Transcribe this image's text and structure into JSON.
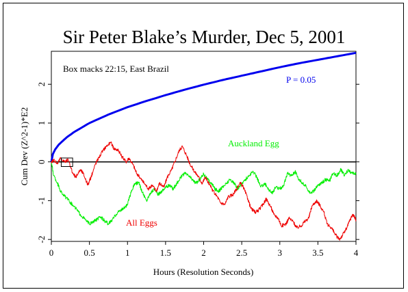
{
  "chart_data": {
    "type": "line",
    "title": "Sir Peter Blake’s Murder, Dec 5, 2001",
    "xlabel": "Hours (Resolution Seconds)",
    "ylabel": "Cum Dev (Z^2-1)*E2",
    "xlim": [
      0,
      4
    ],
    "ylim": [
      -2.05,
      2.85
    ],
    "x_ticks": [
      {
        "value": 0,
        "label": "0"
      },
      {
        "value": 0.5,
        "label": "0.5"
      },
      {
        "value": 1,
        "label": "1"
      },
      {
        "value": 1.5,
        "label": "1.5"
      },
      {
        "value": 2,
        "label": "2"
      },
      {
        "value": 2.5,
        "label": "2.5"
      },
      {
        "value": 3,
        "label": "3"
      },
      {
        "value": 3.5,
        "label": "3.5"
      },
      {
        "value": 4,
        "label": "4"
      }
    ],
    "y_ticks": [
      {
        "value": -2,
        "label": "-2"
      },
      {
        "value": -1,
        "label": "-1"
      },
      {
        "value": 0,
        "label": "0"
      },
      {
        "value": 1,
        "label": "1"
      },
      {
        "value": 2,
        "label": "2"
      }
    ],
    "annotations": {
      "box_note": "Box macks 22:15, East Brazil",
      "p_label": "P = 0.05",
      "auckland_label": "Auckland Egg",
      "alleggs_label": "All Eggs"
    },
    "box_marker": {
      "x": [
        0.13,
        0.28
      ],
      "y": [
        -0.12,
        0.1
      ]
    },
    "colors": {
      "p": "#0000ee",
      "auckland": "#00ee00",
      "all_eggs": "#ee0000",
      "zero": "#000000"
    },
    "series": [
      {
        "name": "P = 0.05",
        "color": "#0000ee",
        "x": [
          0,
          0.02,
          0.05,
          0.1,
          0.2,
          0.3,
          0.5,
          0.75,
          1,
          1.25,
          1.5,
          1.75,
          2,
          2.25,
          2.5,
          2.75,
          3,
          3.25,
          3.5,
          3.75,
          4
        ],
        "y": [
          0,
          0.2,
          0.32,
          0.45,
          0.63,
          0.77,
          1.0,
          1.22,
          1.41,
          1.57,
          1.72,
          1.86,
          1.99,
          2.11,
          2.22,
          2.33,
          2.44,
          2.54,
          2.63,
          2.72,
          2.81
        ]
      },
      {
        "name": "Auckland Egg",
        "color": "#00ee00",
        "x": [
          0,
          0.03,
          0.08,
          0.12,
          0.18,
          0.25,
          0.32,
          0.38,
          0.45,
          0.5,
          0.55,
          0.6,
          0.65,
          0.7,
          0.75,
          0.8,
          0.85,
          0.9,
          0.95,
          1.0,
          1.05,
          1.1,
          1.15,
          1.2,
          1.25,
          1.3,
          1.35,
          1.4,
          1.45,
          1.5,
          1.55,
          1.6,
          1.65,
          1.7,
          1.75,
          1.8,
          1.85,
          1.9,
          1.95,
          2.0,
          2.05,
          2.1,
          2.15,
          2.2,
          2.25,
          2.3,
          2.35,
          2.4,
          2.45,
          2.5,
          2.55,
          2.6,
          2.65,
          2.7,
          2.75,
          2.8,
          2.85,
          2.9,
          2.95,
          3.0,
          3.05,
          3.1,
          3.15,
          3.2,
          3.25,
          3.3,
          3.35,
          3.4,
          3.45,
          3.5,
          3.55,
          3.6,
          3.65,
          3.7,
          3.75,
          3.8,
          3.85,
          3.9,
          3.95,
          4.0
        ],
        "y": [
          0,
          -0.35,
          -0.55,
          -0.75,
          -0.9,
          -1.05,
          -1.2,
          -1.35,
          -1.5,
          -1.6,
          -1.55,
          -1.48,
          -1.42,
          -1.52,
          -1.6,
          -1.5,
          -1.35,
          -1.25,
          -1.2,
          -1.1,
          -0.75,
          -0.55,
          -0.55,
          -0.8,
          -1.0,
          -0.8,
          -0.7,
          -0.85,
          -0.75,
          -0.65,
          -0.6,
          -0.7,
          -0.55,
          -0.4,
          -0.3,
          -0.35,
          -0.45,
          -0.55,
          -0.45,
          -0.3,
          -0.45,
          -0.55,
          -0.7,
          -0.75,
          -0.65,
          -0.55,
          -0.45,
          -0.55,
          -0.7,
          -0.55,
          -0.45,
          -0.35,
          -0.25,
          -0.4,
          -0.65,
          -0.55,
          -0.7,
          -0.8,
          -0.65,
          -0.7,
          -0.6,
          -0.3,
          -0.35,
          -0.25,
          -0.45,
          -0.55,
          -0.65,
          -0.8,
          -0.75,
          -0.6,
          -0.55,
          -0.45,
          -0.5,
          -0.3,
          -0.35,
          -0.2,
          -0.35,
          -0.2,
          -0.3,
          -0.3
        ]
      },
      {
        "name": "All Eggs",
        "color": "#ee0000",
        "x": [
          0,
          0.03,
          0.08,
          0.12,
          0.18,
          0.22,
          0.28,
          0.32,
          0.38,
          0.42,
          0.48,
          0.52,
          0.58,
          0.62,
          0.68,
          0.72,
          0.78,
          0.82,
          0.88,
          0.92,
          0.98,
          1.02,
          1.08,
          1.12,
          1.18,
          1.22,
          1.28,
          1.32,
          1.38,
          1.42,
          1.48,
          1.52,
          1.58,
          1.62,
          1.68,
          1.72,
          1.78,
          1.82,
          1.88,
          1.92,
          1.98,
          2.02,
          2.08,
          2.12,
          2.18,
          2.22,
          2.28,
          2.32,
          2.38,
          2.42,
          2.48,
          2.52,
          2.58,
          2.62,
          2.68,
          2.72,
          2.78,
          2.82,
          2.88,
          2.92,
          2.98,
          3.02,
          3.08,
          3.12,
          3.18,
          3.22,
          3.28,
          3.32,
          3.38,
          3.42,
          3.48,
          3.52,
          3.58,
          3.62,
          3.68,
          3.72,
          3.78,
          3.82,
          3.88,
          3.92,
          3.96,
          4.0
        ],
        "y": [
          0,
          0.05,
          -0.05,
          0.1,
          0.0,
          0.05,
          -0.3,
          -0.4,
          -0.2,
          -0.3,
          -0.6,
          -0.4,
          -0.05,
          0.1,
          0.3,
          0.4,
          0.5,
          0.35,
          0.3,
          0.15,
          0.0,
          0.1,
          -0.1,
          -0.3,
          -0.45,
          -0.55,
          -0.7,
          -0.6,
          -0.75,
          -0.55,
          -0.65,
          -0.4,
          -0.2,
          0.0,
          0.3,
          0.4,
          0.15,
          -0.05,
          -0.25,
          -0.35,
          -0.55,
          -0.4,
          -0.6,
          -0.75,
          -0.9,
          -1.05,
          -1.1,
          -0.9,
          -0.85,
          -0.75,
          -0.55,
          -0.65,
          -0.95,
          -1.2,
          -1.3,
          -1.25,
          -1.1,
          -0.95,
          -1.15,
          -1.35,
          -1.45,
          -1.65,
          -1.6,
          -1.45,
          -1.55,
          -1.7,
          -1.65,
          -1.55,
          -1.45,
          -1.15,
          -1.0,
          -1.1,
          -1.3,
          -1.6,
          -1.7,
          -1.85,
          -2.0,
          -1.9,
          -1.7,
          -1.5,
          -1.35,
          -1.5
        ]
      }
    ]
  }
}
